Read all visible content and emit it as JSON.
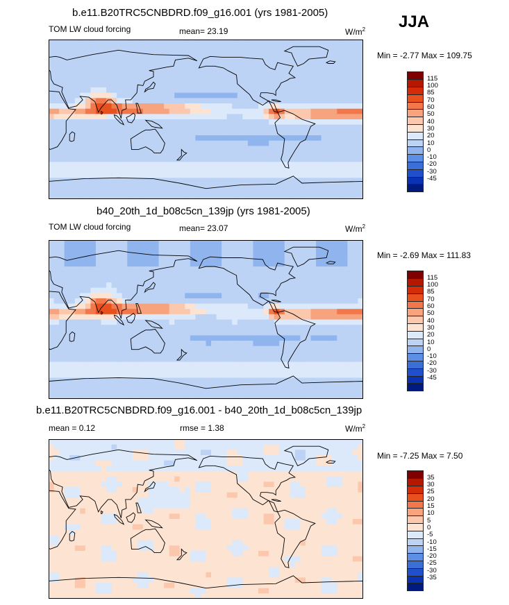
{
  "season": "JJA",
  "panels": [
    {
      "title": "b.e11.B20TRC5CNBDRD.f09_g16.001 (yrs 1981-2005)",
      "left_label": "TOM LW cloud forcing",
      "stat_text": "mean=  23.19",
      "units": "W/m",
      "units_sup": "2",
      "minmax": "Min = -2.77 Max = 109.75",
      "colorbar_labels": [
        "115",
        "100",
        "85",
        "70",
        "60",
        "50",
        "40",
        "30",
        "20",
        "10",
        "0",
        "-10",
        "-20",
        "-30",
        "-45"
      ]
    },
    {
      "title": "b40_20th_1d_b08c5cn_139jp (yrs 1981-2005)",
      "left_label": "TOM LW cloud forcing",
      "stat_text": "mean=  23.07",
      "units": "W/m",
      "units_sup": "2",
      "minmax": "Min = -2.69 Max = 111.83",
      "colorbar_labels": [
        "115",
        "100",
        "85",
        "70",
        "60",
        "50",
        "40",
        "30",
        "20",
        "10",
        "0",
        "-10",
        "-20",
        "-30",
        "-45"
      ]
    },
    {
      "title": "b.e11.B20TRC5CNBDRD.f09_g16.001 - b40_20th_1d_b08c5cn_139jp",
      "left_label": "mean =   0.12",
      "stat_text": "rmse =   1.38",
      "units": "W/m",
      "units_sup": "2",
      "minmax": "Min = -7.25 Max =   7.50",
      "colorbar_labels": [
        "35",
        "30",
        "25",
        "20",
        "15",
        "10",
        "5",
        "0",
        "-5",
        "-10",
        "-15",
        "-20",
        "-25",
        "-30",
        "-35"
      ]
    }
  ],
  "colors": {
    "colorbar_top_to_bottom": [
      "#7f0000",
      "#b51700",
      "#d42c09",
      "#e8501e",
      "#f2774b",
      "#f7a37e",
      "#fbc8ad",
      "#fde3d2",
      "#dbe9fb",
      "#bcd3f5",
      "#8fb4ee",
      "#5d8fe6",
      "#3a6ed9",
      "#1f4fcd",
      "#0a32b4",
      "#001a80"
    ],
    "coast": "#000000"
  }
}
